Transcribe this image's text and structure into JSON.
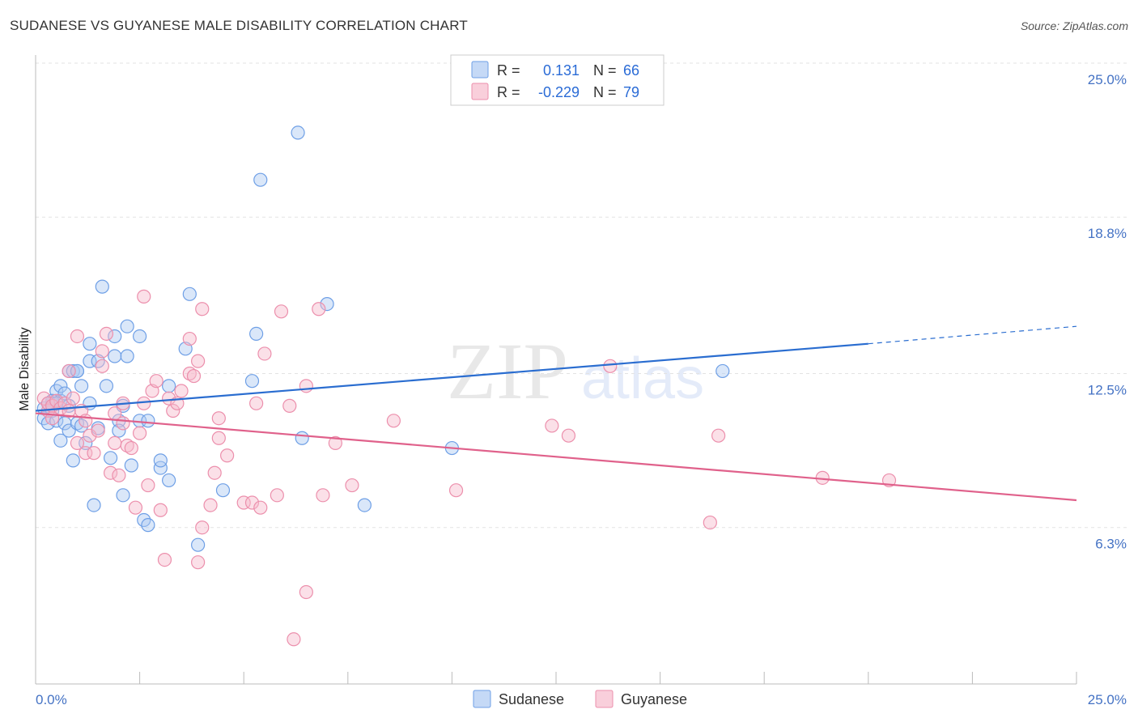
{
  "title": "SUDANESE VS GUYANESE MALE DISABILITY CORRELATION CHART",
  "source": "Source: ZipAtlas.com",
  "watermark": {
    "zip": "ZIP",
    "atlas": "atlas"
  },
  "chart_data": {
    "type": "scatter",
    "xlabel": "",
    "ylabel": "Male Disability",
    "xlim": [
      0,
      25
    ],
    "ylim": [
      0,
      25
    ],
    "x_tick_labels": [
      "0.0%",
      "25.0%"
    ],
    "y_ticks": [
      6.3,
      12.5,
      18.8,
      25.0
    ],
    "y_tick_labels": [
      "6.3%",
      "12.5%",
      "18.8%",
      "25.0%"
    ],
    "grid": true,
    "legend_position": "top-center",
    "stats": [
      {
        "series": "Sudanese",
        "r_label": "R =",
        "r": "0.131",
        "n_label": "N =",
        "n": "66"
      },
      {
        "series": "Guyanese",
        "r_label": "R =",
        "r": "-0.229",
        "n_label": "N =",
        "n": "79"
      }
    ],
    "series": [
      {
        "name": "Sudanese",
        "color": "#6e9fe6",
        "fill": "rgba(173,201,242,0.45)",
        "line_color": "#2a6dd0",
        "trend": {
          "x0": 0,
          "y0": 11.0,
          "x1": 20.0,
          "y1": 13.7,
          "dash_to_x": 25.0,
          "dash_to_y": 14.4
        },
        "points": [
          [
            0.2,
            11.1
          ],
          [
            0.2,
            10.7
          ],
          [
            0.3,
            10.5
          ],
          [
            0.4,
            11.3
          ],
          [
            0.4,
            11.0
          ],
          [
            0.5,
            10.6
          ],
          [
            0.5,
            11.8
          ],
          [
            0.6,
            11.4
          ],
          [
            0.6,
            9.8
          ],
          [
            0.6,
            12.0
          ],
          [
            0.7,
            11.7
          ],
          [
            0.7,
            10.5
          ],
          [
            0.8,
            11.2
          ],
          [
            0.8,
            10.2
          ],
          [
            0.8,
            12.6
          ],
          [
            0.9,
            9.0
          ],
          [
            0.9,
            12.6
          ],
          [
            1.0,
            12.6
          ],
          [
            1.0,
            10.5
          ],
          [
            1.1,
            12.0
          ],
          [
            1.1,
            10.4
          ],
          [
            1.2,
            9.7
          ],
          [
            1.3,
            13.7
          ],
          [
            1.3,
            13.0
          ],
          [
            1.3,
            11.3
          ],
          [
            1.4,
            7.2
          ],
          [
            1.5,
            10.3
          ],
          [
            1.6,
            16.0
          ],
          [
            1.7,
            12.0
          ],
          [
            1.8,
            9.1
          ],
          [
            1.9,
            14.0
          ],
          [
            1.9,
            13.2
          ],
          [
            2.0,
            10.6
          ],
          [
            2.0,
            10.2
          ],
          [
            2.1,
            7.6
          ],
          [
            2.2,
            14.4
          ],
          [
            2.2,
            13.2
          ],
          [
            2.3,
            8.8
          ],
          [
            2.5,
            14.0
          ],
          [
            2.5,
            10.6
          ],
          [
            2.6,
            6.6
          ],
          [
            2.7,
            6.4
          ],
          [
            2.7,
            10.6
          ],
          [
            3.0,
            8.7
          ],
          [
            3.0,
            9.0
          ],
          [
            3.2,
            12.0
          ],
          [
            3.2,
            8.2
          ],
          [
            3.6,
            13.5
          ],
          [
            3.7,
            15.7
          ],
          [
            3.9,
            5.6
          ],
          [
            4.5,
            7.8
          ],
          [
            5.2,
            12.2
          ],
          [
            5.3,
            14.1
          ],
          [
            5.4,
            20.3
          ],
          [
            6.3,
            22.2
          ],
          [
            6.4,
            9.9
          ],
          [
            7.0,
            15.3
          ],
          [
            7.9,
            7.2
          ],
          [
            10.0,
            9.5
          ],
          [
            16.5,
            12.6
          ],
          [
            0.4,
            11.4
          ],
          [
            0.5,
            11.3
          ],
          [
            1.0,
            12.6
          ],
          [
            0.3,
            11.3
          ],
          [
            2.1,
            11.2
          ],
          [
            1.5,
            13.0
          ]
        ]
      },
      {
        "name": "Guyanese",
        "color": "#ec8fac",
        "fill": "rgba(246,187,204,0.45)",
        "line_color": "#e0618b",
        "trend": {
          "x0": 0,
          "y0": 10.9,
          "x1": 25.0,
          "y1": 7.4
        },
        "points": [
          [
            0.2,
            11.5
          ],
          [
            0.3,
            11.0
          ],
          [
            0.3,
            11.3
          ],
          [
            0.4,
            11.2
          ],
          [
            0.4,
            10.7
          ],
          [
            0.5,
            11.4
          ],
          [
            0.6,
            11.1
          ],
          [
            0.7,
            11.3
          ],
          [
            0.8,
            11.0
          ],
          [
            0.8,
            12.6
          ],
          [
            0.9,
            11.5
          ],
          [
            1.0,
            14.0
          ],
          [
            1.0,
            9.7
          ],
          [
            1.1,
            11.0
          ],
          [
            1.2,
            10.6
          ],
          [
            1.2,
            9.3
          ],
          [
            1.3,
            10.0
          ],
          [
            1.4,
            9.3
          ],
          [
            1.5,
            10.2
          ],
          [
            1.6,
            12.8
          ],
          [
            1.6,
            13.4
          ],
          [
            1.7,
            14.1
          ],
          [
            1.8,
            8.5
          ],
          [
            1.9,
            10.9
          ],
          [
            1.9,
            9.7
          ],
          [
            2.0,
            8.4
          ],
          [
            2.1,
            10.5
          ],
          [
            2.1,
            11.3
          ],
          [
            2.2,
            9.6
          ],
          [
            2.3,
            9.5
          ],
          [
            2.4,
            7.1
          ],
          [
            2.5,
            10.1
          ],
          [
            2.6,
            11.3
          ],
          [
            2.6,
            15.6
          ],
          [
            2.7,
            8.0
          ],
          [
            2.8,
            11.8
          ],
          [
            2.9,
            12.2
          ],
          [
            3.0,
            7.0
          ],
          [
            3.1,
            5.0
          ],
          [
            3.2,
            11.5
          ],
          [
            3.3,
            11.0
          ],
          [
            3.4,
            11.3
          ],
          [
            3.5,
            11.8
          ],
          [
            3.7,
            12.5
          ],
          [
            3.7,
            13.9
          ],
          [
            3.9,
            4.9
          ],
          [
            3.8,
            12.4
          ],
          [
            3.9,
            13.0
          ],
          [
            4.0,
            6.3
          ],
          [
            4.0,
            15.1
          ],
          [
            4.2,
            7.2
          ],
          [
            4.3,
            8.5
          ],
          [
            4.4,
            10.7
          ],
          [
            4.4,
            9.9
          ],
          [
            4.6,
            9.2
          ],
          [
            5.0,
            7.3
          ],
          [
            5.2,
            7.3
          ],
          [
            5.3,
            11.3
          ],
          [
            5.4,
            7.1
          ],
          [
            5.5,
            13.3
          ],
          [
            5.8,
            7.6
          ],
          [
            5.9,
            15.0
          ],
          [
            6.1,
            11.2
          ],
          [
            6.5,
            3.7
          ],
          [
            6.5,
            12.0
          ],
          [
            6.8,
            15.1
          ],
          [
            6.9,
            7.6
          ],
          [
            7.2,
            9.7
          ],
          [
            7.6,
            8.0
          ],
          [
            8.6,
            10.6
          ],
          [
            10.1,
            7.8
          ],
          [
            12.4,
            10.4
          ],
          [
            12.8,
            10.0
          ],
          [
            13.8,
            12.8
          ],
          [
            16.4,
            10.0
          ],
          [
            16.2,
            6.5
          ],
          [
            18.9,
            8.3
          ],
          [
            20.5,
            8.2
          ],
          [
            6.2,
            1.8
          ]
        ]
      }
    ]
  }
}
